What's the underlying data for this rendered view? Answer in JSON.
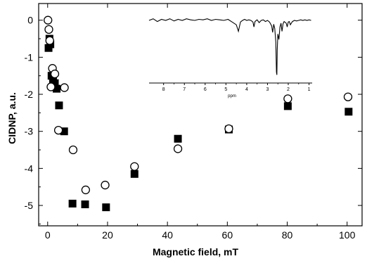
{
  "chart_data": [
    {
      "type": "scatter",
      "xlabel": "Magnetic field, mT",
      "ylabel": "CIDNP, a.u.",
      "xlim": [
        -3,
        105
      ],
      "ylim": [
        -5.55,
        0.45
      ],
      "x_ticks": [
        0,
        20,
        40,
        60,
        80,
        100
      ],
      "y_ticks": [
        0,
        -1,
        -2,
        -3,
        -4,
        -5
      ],
      "grid": false,
      "series": [
        {
          "marker": "filled-square",
          "color": "#000000",
          "points": [
            [
              0.3,
              -0.75
            ],
            [
              0.6,
              -0.5
            ],
            [
              0.9,
              -0.65
            ],
            [
              1.3,
              -1.5
            ],
            [
              1.8,
              -1.6
            ],
            [
              2.4,
              -1.7
            ],
            [
              3.0,
              -1.85
            ],
            [
              3.8,
              -2.3
            ],
            [
              5.5,
              -3.0
            ],
            [
              8.3,
              -4.95
            ],
            [
              12.5,
              -4.97
            ],
            [
              19.5,
              -5.05
            ],
            [
              29.0,
              -4.15
            ],
            [
              43.5,
              -3.2
            ],
            [
              60.5,
              -2.95
            ],
            [
              80.2,
              -2.32
            ],
            [
              100.5,
              -2.47
            ]
          ]
        },
        {
          "marker": "open-circle",
          "color": "#000000",
          "points": [
            [
              0.1,
              0.0
            ],
            [
              0.4,
              -0.25
            ],
            [
              0.7,
              -0.55
            ],
            [
              1.1,
              -1.8
            ],
            [
              1.6,
              -1.3
            ],
            [
              2.4,
              -1.45
            ],
            [
              3.6,
              -2.97
            ],
            [
              5.6,
              -1.82
            ],
            [
              8.5,
              -3.5
            ],
            [
              12.7,
              -4.58
            ],
            [
              19.2,
              -4.45
            ],
            [
              29.0,
              -3.95
            ],
            [
              43.5,
              -3.47
            ],
            [
              60.5,
              -2.93
            ],
            [
              80.2,
              -2.12
            ],
            [
              100.3,
              -2.07
            ]
          ]
        }
      ]
    },
    {
      "type": "line",
      "role": "inset-nmr-spectrum",
      "xlabel": "ppm",
      "x_reversed": true,
      "xlim": [
        8.7,
        0.85
      ],
      "ylim": [
        -1.15,
        0.22
      ],
      "x_ticks": [
        8,
        7,
        6,
        5,
        4,
        3,
        2,
        1
      ],
      "x_tick_labels": [
        "8",
        "7",
        "6",
        "5",
        "4",
        "3",
        "2",
        "1"
      ],
      "x": [
        8.7,
        8.5,
        8.3,
        8.1,
        7.9,
        7.7,
        7.5,
        7.3,
        7.1,
        6.9,
        6.7,
        6.5,
        6.3,
        6.1,
        5.9,
        5.7,
        5.5,
        5.3,
        5.1,
        4.9,
        4.7,
        4.5,
        4.4,
        4.3,
        4.2,
        4.1,
        4.0,
        3.9,
        3.8,
        3.7,
        3.65,
        3.6,
        3.5,
        3.4,
        3.3,
        3.2,
        3.1,
        3.0,
        2.9,
        2.8,
        2.75,
        2.7,
        2.65,
        2.6,
        2.57,
        2.55,
        2.53,
        2.5,
        2.45,
        2.4,
        2.35,
        2.3,
        2.25,
        2.2,
        2.1,
        2.05,
        2.0,
        1.95,
        1.9,
        1.8,
        1.7,
        1.6,
        1.5,
        1.4,
        1.3,
        1.2,
        1.1,
        1.0,
        0.9
      ],
      "y": [
        0.0,
        0.03,
        -0.02,
        0.02,
        0.0,
        0.03,
        -0.01,
        0.02,
        0.0,
        0.03,
        0.01,
        0.0,
        0.02,
        0.01,
        0.03,
        0.0,
        0.02,
        0.01,
        0.0,
        0.02,
        -0.03,
        -0.08,
        -0.2,
        -0.03,
        0.0,
        0.02,
        0.0,
        0.01,
        0.0,
        -0.03,
        -0.12,
        -0.02,
        0.01,
        -0.04,
        0.0,
        0.01,
        -0.02,
        0.0,
        -0.03,
        -0.1,
        -0.22,
        -0.07,
        -0.15,
        -0.4,
        -0.95,
        -1.0,
        -0.55,
        -0.25,
        -0.35,
        -0.12,
        -0.05,
        -0.2,
        -0.06,
        -0.02,
        -0.05,
        -0.12,
        -0.03,
        -0.02,
        -0.08,
        -0.02,
        0.0,
        -0.01,
        0.0,
        0.01,
        0.0,
        0.01,
        0.0,
        0.01,
        0.0
      ]
    }
  ]
}
